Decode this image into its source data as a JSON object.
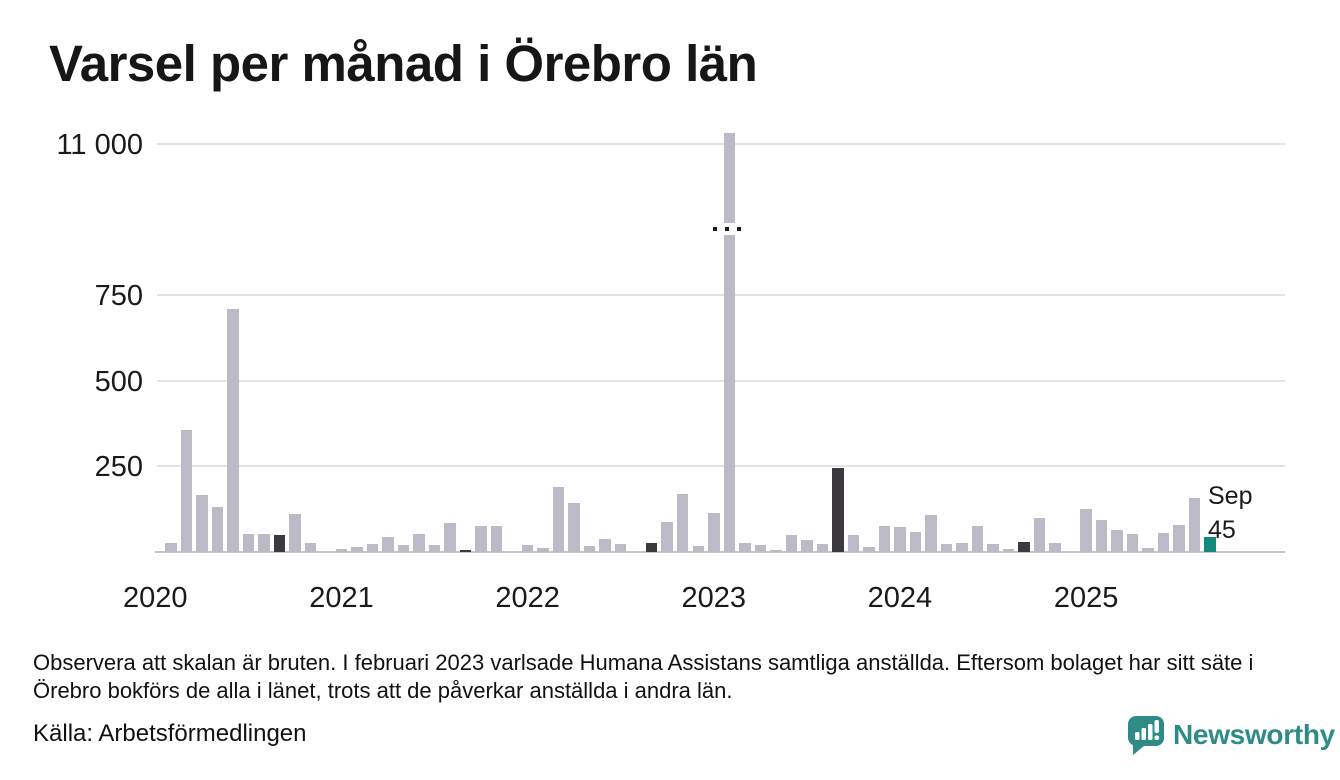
{
  "title": "Varsel per månad i Örebro län",
  "annotation": {
    "month_label": "Sep",
    "value_label": "45"
  },
  "footer": {
    "note": "Observera att skalan är bruten. I februari 2023 varlsade Humana Assistans samtliga anställda. Eftersom bolaget har sitt säte i Örebro bokförs de alla i länet, trots att de påverkar anställda i andra län.",
    "source": "Källa: Arbetsförmedlingen"
  },
  "branding": {
    "name": "Newsworthy",
    "logo_icon": "bar-chart-speech-bubble-icon",
    "color": "#2e8b85"
  },
  "colors": {
    "bar_default": "#bcbac6",
    "bar_september_highlight": "#3b393d",
    "bar_current_month": "#13897d",
    "gridline": "#e4e4e4",
    "axis_line": "#c6c6c6",
    "text": "#1a1a1a"
  },
  "chart_data": {
    "type": "bar",
    "title": "Varsel per månad i Örebro län",
    "xlabel": "",
    "ylabel": "",
    "grid": "horizontal",
    "legend": "none",
    "axis_break": true,
    "axis_break_note": "scale broken between 750 and 11 000",
    "y_ticks": [
      {
        "label": "11 000",
        "value": 11000
      },
      {
        "label": "750",
        "value": 750
      },
      {
        "label": "500",
        "value": 500
      },
      {
        "label": "250",
        "value": 250
      }
    ],
    "x_year_labels": [
      "2020",
      "2021",
      "2022",
      "2023",
      "2024",
      "2025"
    ],
    "categories": [
      "2020-01",
      "2020-02",
      "2020-03",
      "2020-04",
      "2020-05",
      "2020-06",
      "2020-07",
      "2020-08",
      "2020-09",
      "2020-10",
      "2020-11",
      "2020-12",
      "2021-01",
      "2021-02",
      "2021-03",
      "2021-04",
      "2021-05",
      "2021-06",
      "2021-07",
      "2021-08",
      "2021-09",
      "2021-10",
      "2021-11",
      "2021-12",
      "2022-01",
      "2022-02",
      "2022-03",
      "2022-04",
      "2022-05",
      "2022-06",
      "2022-07",
      "2022-08",
      "2022-09",
      "2022-10",
      "2022-11",
      "2022-12",
      "2023-01",
      "2023-02",
      "2023-03",
      "2023-04",
      "2023-05",
      "2023-06",
      "2023-07",
      "2023-08",
      "2023-09",
      "2023-10",
      "2023-11",
      "2023-12",
      "2024-01",
      "2024-02",
      "2024-03",
      "2024-04",
      "2024-05",
      "2024-06",
      "2024-07",
      "2024-08",
      "2024-09",
      "2024-10",
      "2024-11",
      "2024-12",
      "2025-01",
      "2025-02",
      "2025-03",
      "2025-04",
      "2025-05",
      "2025-06",
      "2025-07",
      "2025-08",
      "2025-09"
    ],
    "series": [
      {
        "name": "Varsel",
        "values": [
          0,
          27,
          355,
          165,
          130,
          710,
          53,
          53,
          50,
          110,
          25,
          0,
          8,
          15,
          24,
          43,
          19,
          53,
          21,
          85,
          4,
          77,
          77,
          0,
          19,
          12,
          190,
          143,
          18,
          38,
          24,
          0,
          26,
          87,
          170,
          17,
          114,
          11100,
          25,
          20,
          6,
          50,
          35,
          23,
          245,
          50,
          15,
          77,
          74,
          57,
          108,
          22,
          26,
          77,
          23,
          10,
          28,
          98,
          25,
          0,
          124,
          94,
          64,
          52,
          13,
          56,
          80,
          157,
          45
        ]
      }
    ],
    "bar_styles": {
      "september_highlight_indices": [
        8,
        20,
        32,
        44,
        56
      ],
      "current_month_index": 68,
      "broken_bar_index": 37
    }
  }
}
